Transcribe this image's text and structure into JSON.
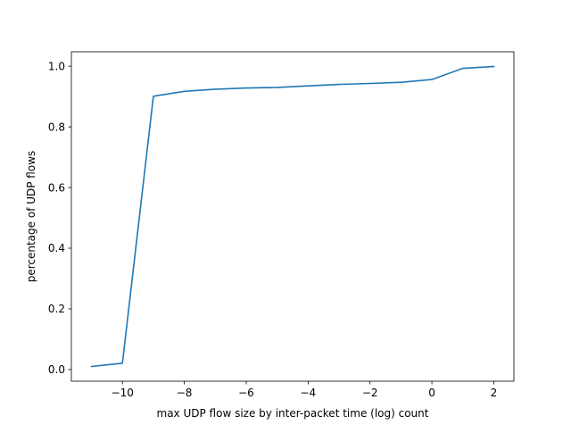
{
  "chart_data": {
    "type": "line",
    "title": "",
    "xlabel": "max UDP flow size by inter-packet time (log) count",
    "ylabel": "percentage of UDP flows",
    "xlim": [
      -11.65,
      2.65
    ],
    "ylim": [
      -0.0385,
      1.0475
    ],
    "x_ticks": [
      -10,
      -8,
      -6,
      -4,
      -2,
      0,
      2
    ],
    "x_tick_labels": [
      "−10",
      "−8",
      "−6",
      "−4",
      "−2",
      "0",
      "2"
    ],
    "y_ticks": [
      0.0,
      0.2,
      0.4,
      0.6,
      0.8,
      1.0
    ],
    "y_tick_labels": [
      "0.0",
      "0.2",
      "0.4",
      "0.6",
      "0.8",
      "1.0"
    ],
    "grid": false,
    "legend": "none",
    "series": [
      {
        "color": "#1f77b4",
        "x": [
          -11,
          -10,
          -9,
          -8,
          -7,
          -6,
          -5,
          -4,
          -3,
          -2,
          -1,
          0,
          1,
          2
        ],
        "y": [
          0.01,
          0.021,
          0.901,
          0.917,
          0.924,
          0.928,
          0.93,
          0.935,
          0.94,
          0.943,
          0.947,
          0.956,
          0.993,
          0.999
        ]
      }
    ]
  }
}
